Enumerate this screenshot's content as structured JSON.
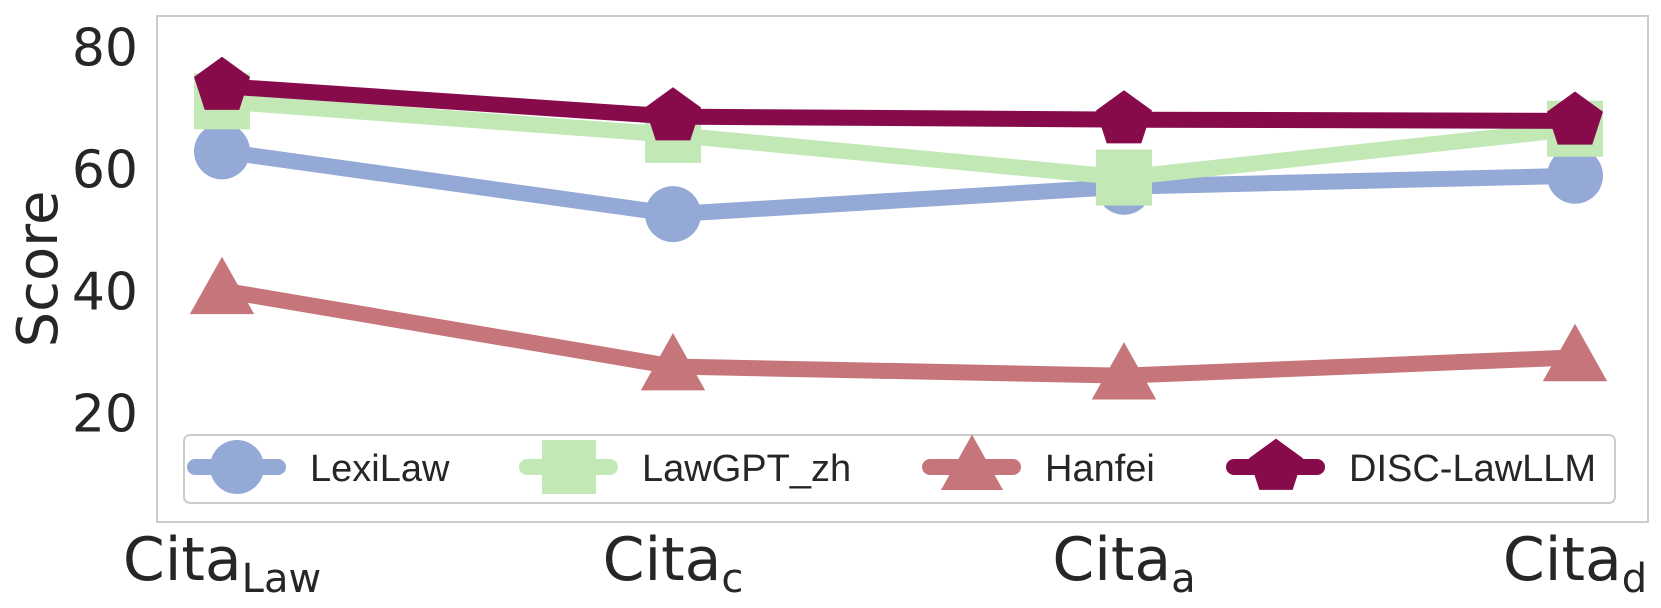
{
  "chart_data": {
    "type": "line",
    "title": "",
    "xlabel": "",
    "ylabel": "Score",
    "categories": [
      {
        "base": "Cita",
        "sub": "Law"
      },
      {
        "base": "Cita",
        "sub": "c"
      },
      {
        "base": "Cita",
        "sub": "a"
      },
      {
        "base": "Cita",
        "sub": "d"
      }
    ],
    "yticks": [
      20,
      40,
      60,
      80
    ],
    "ylim": [
      2,
      85
    ],
    "grid": false,
    "legend": {
      "placement": "bottom",
      "ncol": 4
    },
    "series": [
      {
        "name": "LexiLaw",
        "marker": "circle",
        "color": "#94a9d5",
        "values": [
          62.8,
          52.5,
          57.0,
          58.8
        ]
      },
      {
        "name": "LawGPT_zh",
        "marker": "square",
        "color": "#c2e8b5",
        "values": [
          71.0,
          65.5,
          58.5,
          66.5
        ]
      },
      {
        "name": "Hanfei",
        "marker": "triangle",
        "color": "#c6767a",
        "values": [
          40.0,
          27.5,
          26.0,
          29.0
        ]
      },
      {
        "name": "DISC-LawLLM",
        "marker": "pentagon",
        "color": "#870a4b",
        "values": [
          73.5,
          68.5,
          68.0,
          67.8
        ]
      }
    ]
  }
}
